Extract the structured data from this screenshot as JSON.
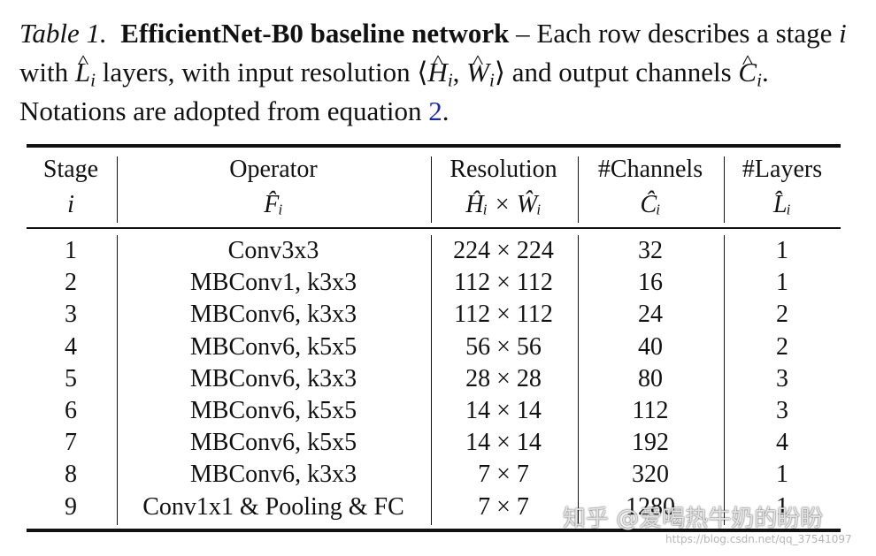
{
  "caption": {
    "label": "Table 1.",
    "title": "EfficientNet-B0 baseline network",
    "text_1": " – Each row describes a stage ",
    "sym_i": "i",
    "text_2": " with ",
    "sym_L": "L",
    "text_3": " layers, with input resolution ⟨",
    "sym_H": "H",
    "text_4": ", ",
    "sym_W": "W",
    "text_5": "⟩ and output channels ",
    "sym_C": "C",
    "text_6": ". Notations are adopted from equation ",
    "ref": "2",
    "text_7": "."
  },
  "table": {
    "headers": [
      {
        "line1": "Stage",
        "line2": "i"
      },
      {
        "line1": "Operator",
        "line2": "F̂ᵢ"
      },
      {
        "line1": "Resolution",
        "line2": "Ĥᵢ × Ŵᵢ"
      },
      {
        "line1": "#Channels",
        "line2": "Ĉᵢ"
      },
      {
        "line1": "#Layers",
        "line2": "L̂ᵢ"
      }
    ],
    "rows": [
      [
        "1",
        "Conv3x3",
        "224 × 224",
        "32",
        "1"
      ],
      [
        "2",
        "MBConv1, k3x3",
        "112 × 112",
        "16",
        "1"
      ],
      [
        "3",
        "MBConv6, k3x3",
        "112 × 112",
        "24",
        "2"
      ],
      [
        "4",
        "MBConv6, k5x5",
        "56 × 56",
        "40",
        "2"
      ],
      [
        "5",
        "MBConv6, k3x3",
        "28 × 28",
        "80",
        "3"
      ],
      [
        "6",
        "MBConv6, k5x5",
        "14 × 14",
        "112",
        "3"
      ],
      [
        "7",
        "MBConv6, k5x5",
        "14 × 14",
        "192",
        "4"
      ],
      [
        "8",
        "MBConv6, k3x3",
        "7 × 7",
        "320",
        "1"
      ],
      [
        "9",
        "Conv1x1 & Pooling & FC",
        "7 × 7",
        "1280",
        "1"
      ]
    ]
  },
  "watermark": {
    "text": "知乎 @爱喝热牛奶的盼盼",
    "url": "https://blog.csdn.net/qq_37541097"
  }
}
